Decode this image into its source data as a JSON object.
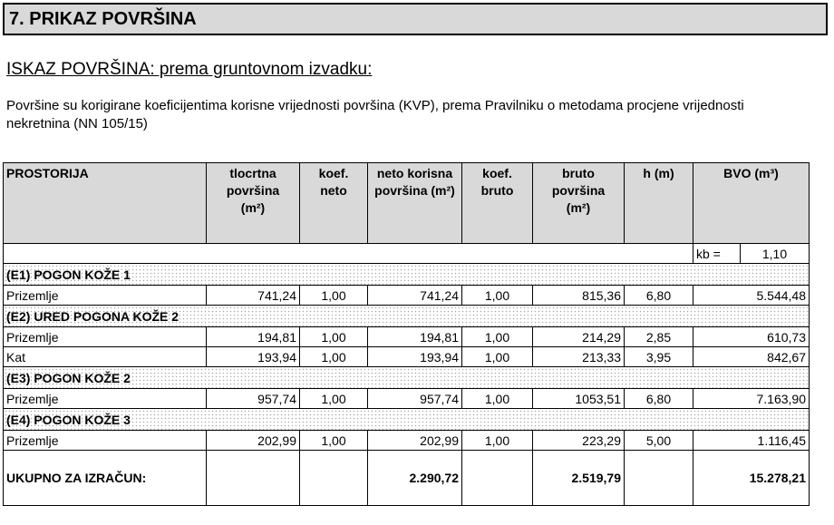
{
  "title": "7.  PRIKAZ POVRŠINA",
  "subtitle": "ISKAZ POVRŠINA: prema gruntovnom izvadku:",
  "paragraph": "Površine su korigirane koeficijentima korisne vrijednosti površina (KVP), prema Pravilniku o metodama procjene vrijednosti nekretnina (NN 105/15)",
  "table": {
    "headers": {
      "room": "PROSTORIJA",
      "floor_area": "tlocrtna površina (m²)",
      "coef_net": "koef. neto",
      "net_area": "neto korisna površina (m²)",
      "coef_gross": "koef. bruto",
      "gross_area": "bruto površina (m²)",
      "h": "h (m)",
      "bvo": "BVO (m³)"
    },
    "kb_label": "kb =",
    "kb_value": "1,10",
    "groups": [
      {
        "name": "(E1) POGON KOŽE 1",
        "rows": [
          [
            "Prizemlje",
            "741,24",
            "1,00",
            "741,24",
            "1,00",
            "815,36",
            "6,80",
            "5.544,48"
          ]
        ]
      },
      {
        "name": "(E2) URED POGONA KOŽE 2",
        "rows": [
          [
            "Prizemlje",
            "194,81",
            "1,00",
            "194,81",
            "1,00",
            "214,29",
            "2,85",
            "610,73"
          ],
          [
            "Kat",
            "193,94",
            "1,00",
            "193,94",
            "1,00",
            "213,33",
            "3,95",
            "842,67"
          ]
        ]
      },
      {
        "name": "(E3) POGON KOŽE 2",
        "rows": [
          [
            "Prizemlje",
            "957,74",
            "1,00",
            "957,74",
            "1,00",
            "1053,51",
            "6,80",
            "7.163,90"
          ]
        ]
      },
      {
        "name": "(E4) POGON KOŽE 3",
        "rows": [
          [
            "Prizemlje",
            "202,99",
            "1,00",
            "202,99",
            "1,00",
            "223,29",
            "5,00",
            "1.116,45"
          ]
        ]
      }
    ],
    "total": {
      "label": "UKUPNO ZA IZRAČUN:",
      "net_area": "2.290,72",
      "gross_area": "2.519,79",
      "bvo": "15.278,21"
    }
  }
}
